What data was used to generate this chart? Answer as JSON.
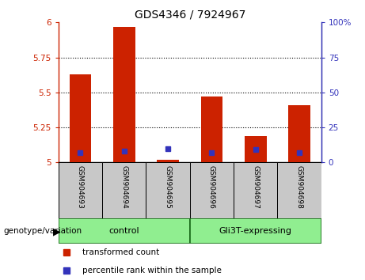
{
  "title": "GDS4346 / 7924967",
  "samples": [
    "GSM904693",
    "GSM904694",
    "GSM904695",
    "GSM904696",
    "GSM904697",
    "GSM904698"
  ],
  "red_values": [
    5.63,
    5.97,
    5.02,
    5.47,
    5.19,
    5.41
  ],
  "blue_values": [
    7,
    8,
    10,
    7,
    9,
    7
  ],
  "ylim_left": [
    5.0,
    6.0
  ],
  "ylim_right": [
    0,
    100
  ],
  "yticks_left": [
    5.0,
    5.25,
    5.5,
    5.75,
    6.0
  ],
  "yticks_right": [
    0,
    25,
    50,
    75,
    100
  ],
  "ytick_labels_left": [
    "5",
    "5.25",
    "5.5",
    "5.75",
    "6"
  ],
  "ytick_labels_right": [
    "0",
    "25",
    "50",
    "75",
    "100%"
  ],
  "groups": [
    {
      "label": "control",
      "indices": [
        0,
        1,
        2
      ]
    },
    {
      "label": "Gli3T-expressing",
      "indices": [
        3,
        4,
        5
      ]
    }
  ],
  "bar_color": "#CC2200",
  "blue_color": "#3333BB",
  "bar_width": 0.5,
  "genotype_label": "genotype/variation",
  "legend_items": [
    "transformed count",
    "percentile rank within the sample"
  ],
  "legend_colors": [
    "#CC2200",
    "#3333BB"
  ],
  "gray_bg": "#C8C8C8",
  "green_bg": "#90EE90",
  "dark_border": "#1A6B1A"
}
